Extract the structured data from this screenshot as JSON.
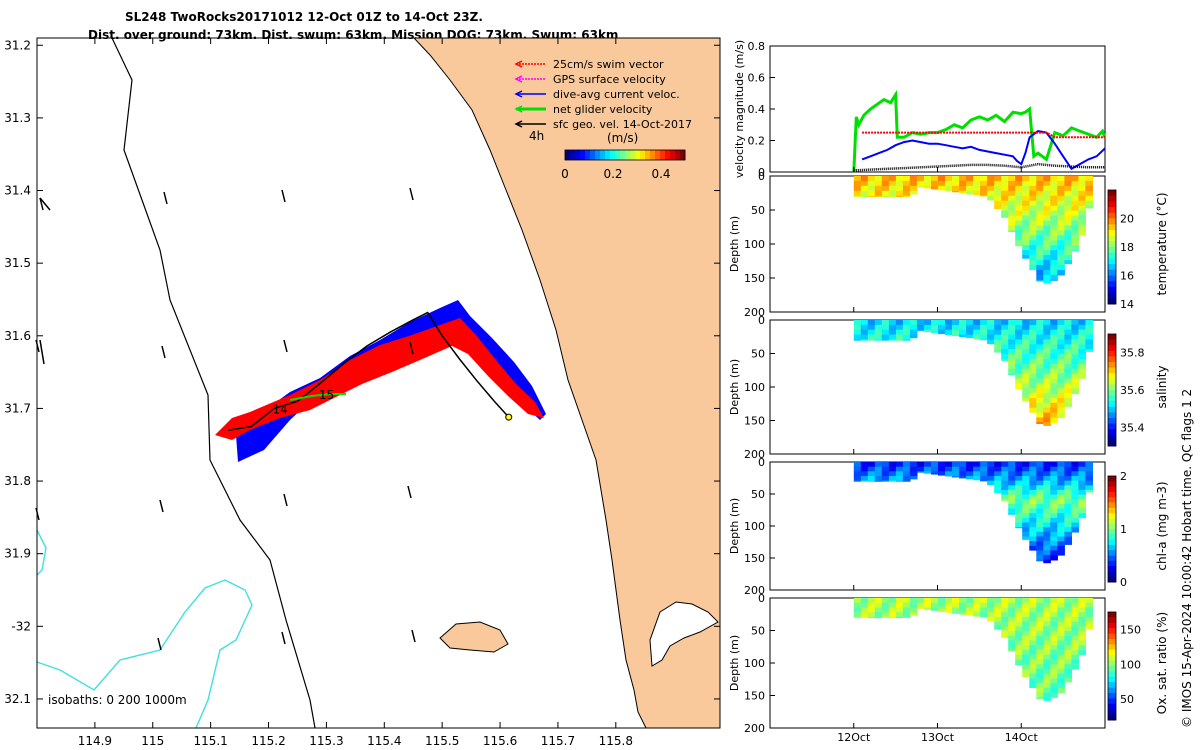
{
  "header": {
    "title_line1": "SL248 TwoRocks20171012 12-Oct 01Z to 14-Oct 23Z.",
    "title_line2": "Dist. over ground: 73km. Dist. swum: 63km. Mission DOG: 73km. Swum: 63km"
  },
  "credit": "© IMOS 15-Apr-2024 10:00:42 Hobart time. QC flags 1  2",
  "colors": {
    "land": "#f9c89b",
    "coast": "#000000",
    "isobath_1000": "#40e0e0",
    "swim_vector": "#ff0000",
    "gps_velocity": "#ff00ff",
    "dive_avg": "#0000ff",
    "net_velocity": "#00e000",
    "sfc_geo": "#000000"
  },
  "map": {
    "xaxis": {
      "min": 114.8,
      "max": 115.98,
      "ticks": [
        114.9,
        115,
        115.1,
        115.2,
        115.3,
        115.4,
        115.5,
        115.6,
        115.7,
        115.8
      ],
      "tick_labels": [
        "114.9",
        "115",
        "115.1",
        "115.2",
        "115.3",
        "115.4",
        "115.5",
        "115.6",
        "115.7",
        "115.8"
      ]
    },
    "yaxis": {
      "min": -32.14,
      "max": -31.19,
      "ticks": [
        -31.2,
        -31.3,
        -31.4,
        -31.5,
        -31.6,
        -31.7,
        -31.8,
        -31.9,
        -32,
        -32.1
      ],
      "tick_labels": [
        "31.2",
        "31.3",
        "31.4",
        "31.5",
        "31.6",
        "31.7",
        "31.8",
        "31.9",
        "-32",
        "32.1"
      ]
    },
    "legend": {
      "items": [
        {
          "label": "25cm/s swim vector",
          "color": "#ff0000"
        },
        {
          "label": "GPS surface velocity",
          "color": "#ff00ff"
        },
        {
          "label": "dive-avg current veloc.",
          "color": "#0000ff"
        },
        {
          "label": "net glider velocity",
          "color": "#00e000"
        },
        {
          "label": "sfc geo. vel. 14-Oct-2017",
          "color": "#000000"
        }
      ],
      "time_label": "4h",
      "colorbar_label": "(m/s)",
      "colorbar_ticks": [
        "0",
        "0.2",
        "0.4"
      ],
      "colorbar_tick_values": [
        0,
        0.2,
        0.4
      ],
      "colorbar_range": [
        0,
        0.5
      ]
    },
    "isobaths_label": "isobaths: 0   200  1000m",
    "day_labels": [
      {
        "text": "14",
        "lon": 115.2,
        "lat": -31.7
      },
      {
        "text": "15",
        "lon": 115.28,
        "lat": -31.68
      }
    ],
    "track": [
      [
        115.13,
        -31.73
      ],
      [
        115.17,
        -31.725
      ],
      [
        115.21,
        -31.7
      ],
      [
        115.25,
        -31.69
      ],
      [
        115.29,
        -31.665
      ],
      [
        115.33,
        -31.638
      ],
      [
        115.37,
        -31.614
      ],
      [
        115.41,
        -31.595
      ],
      [
        115.45,
        -31.578
      ],
      [
        115.475,
        -31.568
      ],
      [
        115.5,
        -31.6
      ],
      [
        115.53,
        -31.632
      ],
      [
        115.56,
        -31.662
      ],
      [
        115.59,
        -31.69
      ],
      [
        115.615,
        -31.712
      ]
    ]
  },
  "chart_data": [
    {
      "type": "line",
      "title": "",
      "ylabel": "velocity magnitude (m/s)",
      "ylim": [
        0,
        0.8
      ],
      "yticks": [
        0,
        0.2,
        0.4,
        0.6,
        0.8
      ],
      "xlim": [
        11.0,
        15.0
      ],
      "series": [
        {
          "name": "net glider velocity",
          "x": [
            12.0,
            12.03,
            12.06,
            12.12,
            12.2,
            12.28,
            12.36,
            12.44,
            12.5,
            12.52,
            12.6,
            12.7,
            12.8,
            12.9,
            13.0,
            13.1,
            13.2,
            13.3,
            13.4,
            13.5,
            13.6,
            13.7,
            13.8,
            13.9,
            14.0,
            14.05,
            14.1,
            14.15,
            14.2,
            14.3,
            14.4,
            14.5,
            14.6,
            14.7,
            14.8,
            14.9,
            14.97,
            15.0
          ],
          "y": [
            0.0,
            0.35,
            0.3,
            0.36,
            0.4,
            0.43,
            0.46,
            0.44,
            0.49,
            0.22,
            0.22,
            0.25,
            0.24,
            0.25,
            0.25,
            0.27,
            0.3,
            0.28,
            0.33,
            0.35,
            0.33,
            0.36,
            0.32,
            0.38,
            0.37,
            0.38,
            0.4,
            0.1,
            0.12,
            0.08,
            0.25,
            0.23,
            0.28,
            0.26,
            0.24,
            0.22,
            0.26,
            0.22
          ]
        },
        {
          "name": "dive-avg current veloc.",
          "x": [
            12.1,
            12.2,
            12.3,
            12.4,
            12.5,
            12.6,
            12.7,
            12.8,
            12.9,
            13.0,
            13.1,
            13.2,
            13.3,
            13.4,
            13.5,
            13.6,
            13.7,
            13.8,
            13.9,
            13.95,
            14.0,
            14.05,
            14.1,
            14.2,
            14.3,
            14.4,
            14.5,
            14.6,
            14.7,
            14.8,
            14.9,
            15.0
          ],
          "y": [
            0.08,
            0.1,
            0.12,
            0.14,
            0.17,
            0.19,
            0.2,
            0.19,
            0.18,
            0.18,
            0.17,
            0.16,
            0.15,
            0.16,
            0.14,
            0.13,
            0.12,
            0.11,
            0.1,
            0.07,
            0.05,
            0.12,
            0.22,
            0.26,
            0.25,
            0.18,
            0.1,
            0.02,
            0.05,
            0.08,
            0.1,
            0.15
          ]
        },
        {
          "name": "25cm/s swim vector",
          "x": [
            12.1,
            13.0,
            14.0,
            14.3,
            14.4,
            15.0
          ],
          "y": [
            0.25,
            0.25,
            0.25,
            0.25,
            0.22,
            0.22
          ]
        },
        {
          "name": "sfc geo. vel.",
          "x": [
            12.0,
            12.2,
            12.4,
            12.6,
            12.8,
            13.0,
            13.2,
            13.4,
            13.6,
            13.8,
            14.0,
            14.2,
            14.4,
            14.6,
            14.8,
            15.0
          ],
          "y": [
            0.01,
            0.015,
            0.02,
            0.025,
            0.03,
            0.035,
            0.04,
            0.045,
            0.045,
            0.04,
            0.03,
            0.05,
            0.04,
            0.035,
            0.03,
            0.03
          ]
        }
      ]
    },
    {
      "type": "heatmap",
      "title": "temperature",
      "ylabel": "Depth (m)",
      "ylim": [
        200,
        0
      ],
      "yticks": [
        0,
        50,
        100,
        150,
        200
      ],
      "colorbar_label": "temperature (°C)",
      "clim": [
        14,
        22
      ],
      "cticks": [
        14,
        16,
        18,
        20
      ],
      "bottom_depth": [
        {
          "day": 12.0,
          "depth": 30
        },
        {
          "day": 12.7,
          "depth": 30
        },
        {
          "day": 12.75,
          "depth": 15
        },
        {
          "day": 13.6,
          "depth": 30
        },
        {
          "day": 13.8,
          "depth": 60
        },
        {
          "day": 14.0,
          "depth": 110
        },
        {
          "day": 14.25,
          "depth": 160
        },
        {
          "day": 14.45,
          "depth": 150
        },
        {
          "day": 14.6,
          "depth": 120
        },
        {
          "day": 14.75,
          "depth": 80
        },
        {
          "day": 14.82,
          "depth": 40
        }
      ],
      "profile": [
        {
          "depth": 0,
          "value": 19.5
        },
        {
          "depth": 30,
          "value": 19.0
        },
        {
          "depth": 60,
          "value": 18.5
        },
        {
          "depth": 100,
          "value": 17.6
        },
        {
          "depth": 150,
          "value": 16.4
        }
      ]
    },
    {
      "type": "heatmap",
      "title": "salinity",
      "ylabel": "Depth (m)",
      "ylim": [
        200,
        0
      ],
      "yticks": [
        0,
        50,
        100,
        150,
        200
      ],
      "colorbar_label": "salinity",
      "clim": [
        35.3,
        35.9
      ],
      "cticks": [
        35.4,
        35.6,
        35.8
      ],
      "bottom_depth": [
        {
          "day": 12.0,
          "depth": 30
        },
        {
          "day": 12.7,
          "depth": 30
        },
        {
          "day": 12.75,
          "depth": 15
        },
        {
          "day": 13.6,
          "depth": 30
        },
        {
          "day": 13.8,
          "depth": 60
        },
        {
          "day": 14.0,
          "depth": 110
        },
        {
          "day": 14.25,
          "depth": 160
        },
        {
          "day": 14.45,
          "depth": 150
        },
        {
          "day": 14.6,
          "depth": 120
        },
        {
          "day": 14.75,
          "depth": 80
        },
        {
          "day": 14.82,
          "depth": 40
        }
      ],
      "profile": [
        {
          "depth": 0,
          "value": 35.5
        },
        {
          "depth": 40,
          "value": 35.55
        },
        {
          "depth": 80,
          "value": 35.6
        },
        {
          "depth": 120,
          "value": 35.66
        },
        {
          "depth": 155,
          "value": 35.72
        }
      ]
    },
    {
      "type": "heatmap",
      "title": "chl-a",
      "ylabel": "Depth (m)",
      "ylim": [
        200,
        0
      ],
      "yticks": [
        0,
        50,
        100,
        150,
        200
      ],
      "colorbar_label": "chl-a (mg m-3)",
      "clim": [
        0,
        2
      ],
      "cticks": [
        0,
        1,
        2
      ],
      "bottom_depth": [
        {
          "day": 12.0,
          "depth": 30
        },
        {
          "day": 12.7,
          "depth": 30
        },
        {
          "day": 12.75,
          "depth": 15
        },
        {
          "day": 13.6,
          "depth": 30
        },
        {
          "day": 13.8,
          "depth": 60
        },
        {
          "day": 14.0,
          "depth": 110
        },
        {
          "day": 14.25,
          "depth": 160
        },
        {
          "day": 14.45,
          "depth": 150
        },
        {
          "day": 14.6,
          "depth": 120
        },
        {
          "day": 14.75,
          "depth": 80
        },
        {
          "day": 14.82,
          "depth": 40
        }
      ],
      "profile": [
        {
          "depth": 0,
          "value": 0.3
        },
        {
          "depth": 30,
          "value": 0.6
        },
        {
          "depth": 60,
          "value": 1.0
        },
        {
          "depth": 100,
          "value": 0.7
        },
        {
          "depth": 150,
          "value": 0.35
        }
      ]
    },
    {
      "type": "heatmap",
      "title": "Ox. sat. ratio",
      "ylabel": "Depth (m)",
      "ylim": [
        200,
        0
      ],
      "yticks": [
        0,
        50,
        100,
        150,
        200
      ],
      "colorbar_label": "Ox. sat. ratio (%)",
      "clim": [
        20,
        175
      ],
      "cticks": [
        50,
        100,
        150
      ],
      "bottom_depth": [
        {
          "day": 12.0,
          "depth": 30
        },
        {
          "day": 12.7,
          "depth": 30
        },
        {
          "day": 12.75,
          "depth": 15
        },
        {
          "day": 13.6,
          "depth": 30
        },
        {
          "day": 13.8,
          "depth": 60
        },
        {
          "day": 14.0,
          "depth": 110
        },
        {
          "day": 14.25,
          "depth": 160
        },
        {
          "day": 14.45,
          "depth": 150
        },
        {
          "day": 14.6,
          "depth": 120
        },
        {
          "day": 14.75,
          "depth": 80
        },
        {
          "day": 14.82,
          "depth": 40
        }
      ],
      "profile": [
        {
          "depth": 0,
          "value": 104
        },
        {
          "depth": 50,
          "value": 101
        },
        {
          "depth": 100,
          "value": 97
        },
        {
          "depth": 150,
          "value": 94
        }
      ]
    }
  ],
  "time_axis": {
    "ticks": [
      12,
      13,
      14
    ],
    "tick_labels": [
      "12Oct",
      "13Oct",
      "14Oct"
    ]
  }
}
